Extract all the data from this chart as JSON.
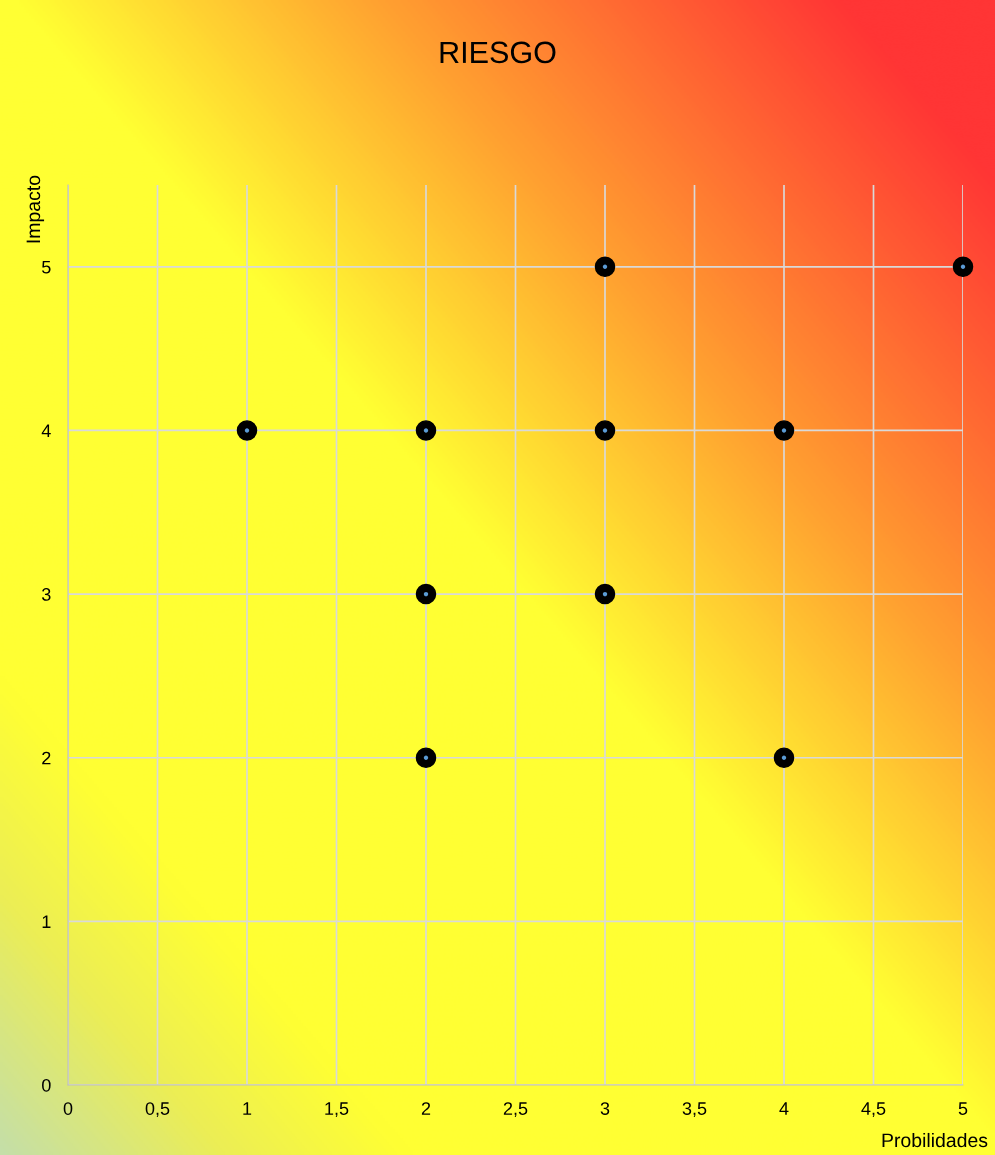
{
  "chart_data": {
    "type": "scatter",
    "title": "RIESGO",
    "xlabel": "Probilidades",
    "ylabel": "Impacto",
    "x": [
      1,
      2,
      2,
      2,
      3,
      3,
      3,
      4,
      4,
      5
    ],
    "series": [
      {
        "color": "#000000",
        "values": [
          4,
          4,
          3,
          2,
          5,
          4,
          3,
          4,
          2,
          5
        ]
      }
    ],
    "xlim": [
      0,
      5
    ],
    "ylim": [
      0,
      5.5
    ],
    "xticks": [
      0,
      {
        "value": 0.5,
        "label": "0,5"
      },
      1,
      {
        "value": 1.5,
        "label": "1,5"
      },
      2,
      {
        "value": 2.5,
        "label": "2,5"
      },
      3,
      {
        "value": 3.5,
        "label": "3,5"
      },
      4,
      {
        "value": 4.5,
        "label": "4,5"
      },
      5
    ],
    "yticks": [
      0,
      1,
      2,
      3,
      4,
      5
    ],
    "grid": true,
    "marker": "circle",
    "legend": false
  }
}
